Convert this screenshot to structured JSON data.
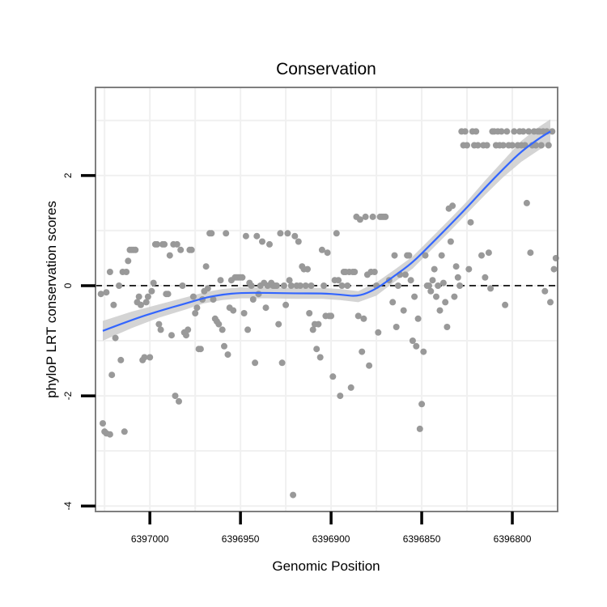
{
  "chart_data": {
    "type": "scatter",
    "title": "Conservation",
    "xlabel": "Genomic Position",
    "ylabel": "phyloP LRT conservation scores",
    "x_reversed": true,
    "xlim": [
      6397030,
      6396775
    ],
    "ylim": [
      -4.1,
      3.6
    ],
    "x_ticks": [
      6397000,
      6396950,
      6396900,
      6396850,
      6396800
    ],
    "x_tick_labels": [
      "6397000",
      "6396950",
      "6396900",
      "6396850",
      "6396800"
    ],
    "y_ticks": [
      -4,
      -2,
      0,
      2
    ],
    "y_tick_labels": [
      "-4",
      "-2",
      "0",
      "2"
    ],
    "grid": true,
    "reference_line": {
      "y": 0,
      "style": "dashed",
      "color": "#000000"
    },
    "colors": {
      "points": "#999999",
      "smooth": "#3366ff",
      "band": "#cccccc",
      "panel_border": "#7f7f7f",
      "grid": "#f0f0f0"
    },
    "points": [
      [
        6397026,
        -2.5
      ],
      [
        6397025,
        -2.65
      ],
      [
        6397024,
        -2.68
      ],
      [
        6397022,
        -2.7
      ],
      [
        6397027,
        -0.15
      ],
      [
        6397024,
        -0.12
      ],
      [
        6397022,
        0.25
      ],
      [
        6397020,
        -0.35
      ],
      [
        6397021,
        -1.62
      ],
      [
        6397019,
        -0.95
      ],
      [
        6397017,
        0.0
      ],
      [
        6397016,
        -1.35
      ],
      [
        6397015,
        0.25
      ],
      [
        6397014,
        -2.65
      ],
      [
        6397013,
        0.25
      ],
      [
        6397012,
        0.45
      ],
      [
        6397011,
        0.65
      ],
      [
        6397010,
        0.65
      ],
      [
        6397009,
        0.65
      ],
      [
        6397008,
        0.65
      ],
      [
        6397007,
        -0.3
      ],
      [
        6397006,
        -0.2
      ],
      [
        6397005,
        -0.35
      ],
      [
        6397004,
        -1.35
      ],
      [
        6397003,
        -1.3
      ],
      [
        6397002,
        -0.3
      ],
      [
        6397001,
        -0.2
      ],
      [
        6397000,
        -1.3
      ],
      [
        6396999,
        -0.1
      ],
      [
        6396998,
        0.05
      ],
      [
        6396997,
        0.75
      ],
      [
        6396996,
        0.75
      ],
      [
        6396995,
        -0.7
      ],
      [
        6396994,
        -0.8
      ],
      [
        6396993,
        0.75
      ],
      [
        6396992,
        0.75
      ],
      [
        6396991,
        -0.15
      ],
      [
        6396990,
        -0.15
      ],
      [
        6396989,
        0.55
      ],
      [
        6396988,
        -0.9
      ],
      [
        6396987,
        0.75
      ],
      [
        6396986,
        -2.0
      ],
      [
        6396985,
        0.75
      ],
      [
        6396984,
        -2.1
      ],
      [
        6396983,
        0.65
      ],
      [
        6396982,
        0.0
      ],
      [
        6396981,
        -0.85
      ],
      [
        6396980,
        -0.9
      ],
      [
        6396979,
        -0.8
      ],
      [
        6396978,
        0.65
      ],
      [
        6396977,
        0.65
      ],
      [
        6396976,
        -0.2
      ],
      [
        6396975,
        -0.5
      ],
      [
        6396974,
        -0.4
      ],
      [
        6396973,
        -1.15
      ],
      [
        6396972,
        -1.15
      ],
      [
        6396971,
        -0.25
      ],
      [
        6396970,
        -0.1
      ],
      [
        6396969,
        0.35
      ],
      [
        6396968,
        -0.05
      ],
      [
        6396967,
        0.95
      ],
      [
        6396966,
        0.95
      ],
      [
        6396965,
        -0.25
      ],
      [
        6396964,
        -0.6
      ],
      [
        6396963,
        -0.65
      ],
      [
        6396962,
        -0.7
      ],
      [
        6396961,
        0.1
      ],
      [
        6396960,
        -0.8
      ],
      [
        6396959,
        -1.1
      ],
      [
        6396958,
        0.95
      ],
      [
        6396957,
        -1.25
      ],
      [
        6396956,
        -0.4
      ],
      [
        6396955,
        0.1
      ],
      [
        6396954,
        -0.45
      ],
      [
        6396953,
        0.15
      ],
      [
        6396952,
        0.15
      ],
      [
        6396951,
        0.15
      ],
      [
        6396950,
        0.15
      ],
      [
        6396949,
        0.15
      ],
      [
        6396948,
        -0.5
      ],
      [
        6396947,
        0.9
      ],
      [
        6396946,
        -0.8
      ],
      [
        6396945,
        0.05
      ],
      [
        6396944,
        0.0
      ],
      [
        6396943,
        -0.25
      ],
      [
        6396942,
        -1.4
      ],
      [
        6396941,
        0.9
      ],
      [
        6396940,
        -0.15
      ],
      [
        6396939,
        0.0
      ],
      [
        6396938,
        0.8
      ],
      [
        6396937,
        0.05
      ],
      [
        6396936,
        -0.4
      ],
      [
        6396935,
        0.0
      ],
      [
        6396934,
        0.75
      ],
      [
        6396933,
        0.05
      ],
      [
        6396932,
        0.0
      ],
      [
        6396931,
        0.0
      ],
      [
        6396930,
        0.0
      ],
      [
        6396929,
        -0.7
      ],
      [
        6396928,
        0.95
      ],
      [
        6396927,
        -1.4
      ],
      [
        6396926,
        0.0
      ],
      [
        6396925,
        -0.35
      ],
      [
        6396924,
        0.95
      ],
      [
        6396923,
        0.1
      ],
      [
        6396922,
        0.0
      ],
      [
        6396921,
        -3.8
      ],
      [
        6396920,
        0.9
      ],
      [
        6396919,
        0.0
      ],
      [
        6396918,
        0.8
      ],
      [
        6396917,
        0.0
      ],
      [
        6396916,
        0.35
      ],
      [
        6396915,
        0.3
      ],
      [
        6396914,
        0.0
      ],
      [
        6396913,
        0.3
      ],
      [
        6396912,
        -0.5
      ],
      [
        6396911,
        0.0
      ],
      [
        6396910,
        -0.8
      ],
      [
        6396909,
        -0.7
      ],
      [
        6396908,
        -1.15
      ],
      [
        6396907,
        -0.7
      ],
      [
        6396906,
        -1.3
      ],
      [
        6396905,
        0.65
      ],
      [
        6396904,
        0.0
      ],
      [
        6396903,
        -0.55
      ],
      [
        6396902,
        0.6
      ],
      [
        6396901,
        -0.55
      ],
      [
        6396900,
        -0.55
      ],
      [
        6396899,
        -1.65
      ],
      [
        6396898,
        0.1
      ],
      [
        6396897,
        0.95
      ],
      [
        6396896,
        0.1
      ],
      [
        6396895,
        -2.0
      ],
      [
        6396894,
        0.0
      ],
      [
        6396893,
        0.25
      ],
      [
        6396892,
        0.25
      ],
      [
        6396891,
        0.0
      ],
      [
        6396890,
        0.25
      ],
      [
        6396889,
        -1.85
      ],
      [
        6396888,
        0.25
      ],
      [
        6396887,
        0.25
      ],
      [
        6396886,
        1.25
      ],
      [
        6396885,
        -0.55
      ],
      [
        6396884,
        1.2
      ],
      [
        6396883,
        -1.2
      ],
      [
        6396882,
        -0.6
      ],
      [
        6396881,
        1.25
      ],
      [
        6396880,
        0.2
      ],
      [
        6396879,
        -1.45
      ],
      [
        6396878,
        0.25
      ],
      [
        6396877,
        1.25
      ],
      [
        6396876,
        0.25
      ],
      [
        6396875,
        0.0
      ],
      [
        6396874,
        -0.85
      ],
      [
        6396873,
        1.25
      ],
      [
        6396872,
        1.25
      ],
      [
        6396871,
        1.25
      ],
      [
        6396870,
        1.25
      ],
      [
        6396868,
        0.1
      ],
      [
        6396866,
        -0.3
      ],
      [
        6396865,
        0.55
      ],
      [
        6396864,
        -0.75
      ],
      [
        6396863,
        0.0
      ],
      [
        6396862,
        0.2
      ],
      [
        6396860,
        -0.45
      ],
      [
        6396859,
        0.2
      ],
      [
        6396858,
        0.55
      ],
      [
        6396857,
        0.55
      ],
      [
        6396856,
        0.1
      ],
      [
        6396855,
        -1.0
      ],
      [
        6396854,
        -0.2
      ],
      [
        6396853,
        -1.1
      ],
      [
        6396852,
        -0.6
      ],
      [
        6396851,
        -2.6
      ],
      [
        6396850,
        -2.15
      ],
      [
        6396849,
        -1.2
      ],
      [
        6396848,
        0.55
      ],
      [
        6396847,
        0.0
      ],
      [
        6396846,
        0.0
      ],
      [
        6396845,
        -0.1
      ],
      [
        6396844,
        0.1
      ],
      [
        6396843,
        0.3
      ],
      [
        6396842,
        -0.2
      ],
      [
        6396841,
        0.0
      ],
      [
        6396840,
        -0.45
      ],
      [
        6396839,
        0.55
      ],
      [
        6396838,
        0.05
      ],
      [
        6396837,
        -0.3
      ],
      [
        6396836,
        -0.75
      ],
      [
        6396835,
        1.4
      ],
      [
        6396834,
        0.8
      ],
      [
        6396833,
        1.45
      ],
      [
        6396832,
        -0.2
      ],
      [
        6396831,
        0.35
      ],
      [
        6396830,
        0.15
      ],
      [
        6396829,
        0.0
      ],
      [
        6396828,
        2.8
      ],
      [
        6396827,
        2.55
      ],
      [
        6396826,
        2.8
      ],
      [
        6396825,
        2.55
      ],
      [
        6396824,
        0.3
      ],
      [
        6396823,
        1.15
      ],
      [
        6396822,
        2.8
      ],
      [
        6396821,
        2.55
      ],
      [
        6396820,
        2.8
      ],
      [
        6396819,
        2.55
      ],
      [
        6396817,
        0.55
      ],
      [
        6396816,
        2.55
      ],
      [
        6396815,
        0.15
      ],
      [
        6396814,
        2.55
      ],
      [
        6396813,
        0.6
      ],
      [
        6396812,
        -0.05
      ],
      [
        6396811,
        2.8
      ],
      [
        6396810,
        2.8
      ],
      [
        6396809,
        2.55
      ],
      [
        6396808,
        2.8
      ],
      [
        6396807,
        2.55
      ],
      [
        6396806,
        2.8
      ],
      [
        6396805,
        2.55
      ],
      [
        6396804,
        -0.35
      ],
      [
        6396803,
        2.8
      ],
      [
        6396802,
        2.55
      ],
      [
        6396800,
        2.55
      ],
      [
        6396799,
        2.8
      ],
      [
        6396797,
        2.55
      ],
      [
        6396796,
        2.8
      ],
      [
        6396795,
        2.55
      ],
      [
        6396794,
        2.8
      ],
      [
        6396793,
        2.55
      ],
      [
        6396792,
        1.5
      ],
      [
        6396791,
        2.8
      ],
      [
        6396790,
        0.6
      ],
      [
        6396789,
        2.55
      ],
      [
        6396788,
        2.8
      ],
      [
        6396787,
        2.55
      ],
      [
        6396786,
        2.8
      ],
      [
        6396785,
        2.8
      ],
      [
        6396784,
        2.55
      ],
      [
        6396783,
        2.8
      ],
      [
        6396782,
        -0.1
      ],
      [
        6396781,
        2.8
      ],
      [
        6396780,
        2.55
      ],
      [
        6396779,
        -0.3
      ],
      [
        6396778,
        2.8
      ],
      [
        6396777,
        0.3
      ],
      [
        6396776,
        0.5
      ]
    ],
    "smooth": {
      "method": "loess",
      "x": [
        6397026,
        6397010,
        6396995,
        6396980,
        6396970,
        6396960,
        6396950,
        6396935,
        6396920,
        6396905,
        6396895,
        6396885,
        6396875,
        6396865,
        6396855,
        6396845,
        6396835,
        6396825,
        6396815,
        6396805,
        6396795,
        6396785,
        6396779
      ],
      "y": [
        -0.82,
        -0.62,
        -0.46,
        -0.32,
        -0.22,
        -0.16,
        -0.13,
        -0.13,
        -0.14,
        -0.14,
        -0.16,
        -0.2,
        -0.06,
        0.18,
        0.42,
        0.75,
        1.08,
        1.42,
        1.78,
        2.12,
        2.44,
        2.68,
        2.8
      ],
      "lower": [
        -1.0,
        -0.77,
        -0.58,
        -0.43,
        -0.32,
        -0.26,
        -0.23,
        -0.23,
        -0.24,
        -0.24,
        -0.26,
        -0.3,
        -0.18,
        0.07,
        0.31,
        0.64,
        0.97,
        1.31,
        1.65,
        1.97,
        2.25,
        2.47,
        2.58
      ],
      "upper": [
        -0.64,
        -0.47,
        -0.34,
        -0.21,
        -0.12,
        -0.06,
        -0.03,
        -0.03,
        -0.04,
        -0.04,
        -0.06,
        -0.1,
        0.06,
        0.29,
        0.53,
        0.86,
        1.19,
        1.53,
        1.91,
        2.27,
        2.63,
        2.89,
        3.02
      ]
    }
  }
}
